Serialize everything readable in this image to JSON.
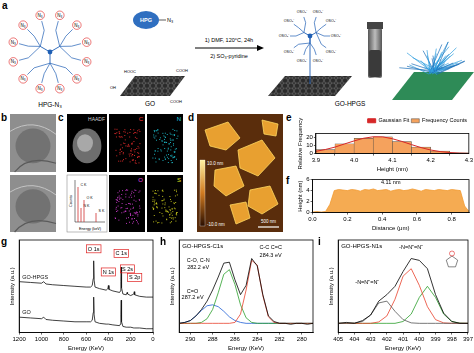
{
  "panels": {
    "a": {
      "letter": "a",
      "left_molecule": {
        "label": "HPG-N₃",
        "end_labels": [
          "N₃",
          "N₃",
          "N₃",
          "N₃",
          "N₃",
          "N₃",
          "N₃",
          "N₃",
          "N₃",
          "N₃",
          "N₃",
          "N₃"
        ]
      },
      "reagent": {
        "label": "HPG",
        "group": "N₃"
      },
      "sheet": {
        "label": "GO",
        "groups": [
          "HOOC",
          "COOH",
          "OH",
          "COOH"
        ]
      },
      "steps": [
        "1) DMF, 120°C, 24h",
        "2) SO₃-pyridine"
      ],
      "product": {
        "label": "GO-HPGS",
        "end_labels": [
          "OSO₃⁻",
          "OSO₃⁻",
          "OSO₃⁻",
          "OSO₃⁻",
          "OSO₃⁻",
          "OSO₃⁻",
          "OSO₃⁻",
          "OSO₃⁻",
          "OSO₃⁻",
          "OSO₃⁻"
        ]
      }
    },
    "b": {
      "letter": "b"
    },
    "c": {
      "letter": "c",
      "maps": [
        {
          "label": "HAADF",
          "color": "#d0d0d0"
        },
        {
          "label": "C",
          "color": "#ff3030"
        },
        {
          "label": "N",
          "color": "#20d0e0"
        },
        {
          "label": "O",
          "color": "#e040e0"
        },
        {
          "label": "S",
          "color": "#e0e020"
        }
      ],
      "eds": {
        "x_label": "Energy (keV)",
        "y_label": "Counts",
        "peaks": [
          "C K",
          "N K",
          "O K",
          "S K"
        ]
      }
    },
    "d": {
      "letter": "d",
      "colorbar_labels": [
        "10.0 nm",
        "-10.0 nm"
      ],
      "scale_bar": "500 nm"
    }
  },
  "chart_data": [
    {
      "panel": "e",
      "type": "histogram",
      "x_label": "Height (nm)",
      "y_label": "Relative Frequency",
      "bins": [
        3.9,
        3.95,
        4.0,
        4.05,
        4.1,
        4.15,
        4.2,
        4.25,
        4.3
      ],
      "counts": [
        5,
        12,
        19,
        21,
        15,
        8,
        3,
        1
      ],
      "name": "Frequency Counts",
      "color": "#f5a25d",
      "fit": {
        "name": "Gaussian Fit",
        "color": "#d62728",
        "x": [
          3.9,
          3.925,
          3.95,
          3.975,
          4.0,
          4.025,
          4.05,
          4.075,
          4.1,
          4.125,
          4.15,
          4.175,
          4.2,
          4.225,
          4.25,
          4.275,
          4.3
        ],
        "values": [
          2.8,
          5.1,
          8.1,
          12.0,
          15.8,
          19.1,
          20.9,
          20.8,
          18.5,
          15.1,
          11.2,
          7.5,
          4.5,
          2.5,
          1.3,
          0.57,
          0.2
        ]
      },
      "xlim": [
        3.9,
        4.3
      ],
      "xticks": [
        3.9,
        {
          "value": 4,
          "label": "4.0"
        },
        4.1,
        4.2,
        4.3
      ],
      "ylim": [
        0,
        25
      ],
      "yticks": [
        0,
        10,
        20
      ],
      "grid": false,
      "legend": "upper right"
    },
    {
      "panel": "f",
      "type": "area",
      "x_label": "Distance (μm)",
      "y_label": "Height (nm)",
      "color": "#f39c34",
      "x": [
        0,
        0.025,
        0.05,
        0.075,
        0.1,
        0.125,
        0.15,
        0.175,
        0.2,
        0.225,
        0.25,
        0.275,
        0.3,
        0.325,
        0.35,
        0.375,
        0.4,
        0.425,
        0.45,
        0.475,
        0.5,
        0.525,
        0.55,
        0.575,
        0.6,
        0.625,
        0.65,
        0.675,
        0.7,
        0.725,
        0.75,
        0.775,
        0.8,
        0.825,
        0.85,
        0.875,
        0.9
      ],
      "values": [
        0.1,
        0.2,
        0.1,
        0.2,
        1.5,
        4.0,
        4.2,
        4.1,
        4.0,
        4.2,
        4.1,
        3.9,
        4.2,
        4.1,
        4.3,
        4.0,
        4.1,
        4.2,
        3.9,
        4.1,
        4.2,
        4.0,
        4.1,
        4.3,
        4.1,
        3.9,
        4.2,
        4.1,
        4.0,
        4.2,
        4.1,
        4.0,
        4.2,
        4.1,
        4.0,
        1.2,
        0.2
      ],
      "annotations": [
        {
          "text": "4.11 nm",
          "x": 0.45,
          "y": 5.2
        }
      ],
      "xlim": [
        0,
        0.9
      ],
      "xticks": [
        {
          "value": 0,
          "label": "0.0"
        },
        0.2,
        0.4,
        0.6,
        0.8
      ],
      "ylim": [
        0,
        6
      ],
      "yticks": [
        0,
        2,
        4,
        6
      ],
      "grid": false
    },
    {
      "panel": "g",
      "type": "line",
      "x_label": "Energy (KeV)",
      "y_label": "Intensity (a.u.)",
      "x": [
        1200,
        1100,
        1000,
        980,
        960,
        900,
        800,
        700,
        600,
        560,
        545,
        536,
        532,
        528,
        520,
        480,
        420,
        405,
        400,
        395,
        360,
        300,
        292,
        288,
        285,
        282,
        270,
        240,
        232,
        228,
        200,
        172,
        168,
        164,
        120,
        60,
        0
      ],
      "series": [
        {
          "name": "GO-HPGS",
          "color": "#111111",
          "values": [
            6.6,
            6.5,
            6.4,
            6.6,
            6.3,
            6.2,
            6.1,
            6.0,
            5.9,
            5.9,
            6.1,
            7.0,
            9.3,
            6.8,
            5.9,
            5.7,
            5.5,
            5.7,
            6.1,
            5.6,
            5.4,
            5.2,
            5.4,
            6.6,
            8.5,
            5.8,
            5.0,
            4.9,
            5.2,
            5.0,
            4.8,
            5.0,
            5.3,
            4.9,
            4.7,
            4.6,
            4.6
          ]
        },
        {
          "name": "GO",
          "color": "#111111",
          "values": [
            2.0,
            1.9,
            1.8,
            2.0,
            1.7,
            1.6,
            1.5,
            1.4,
            1.4,
            1.4,
            1.6,
            2.6,
            4.6,
            2.3,
            1.4,
            1.2,
            1.1,
            1.1,
            1.1,
            1.1,
            1.0,
            0.9,
            1.1,
            2.3,
            4.2,
            1.4,
            0.8,
            0.7,
            0.7,
            0.7,
            0.7,
            0.6,
            0.6,
            0.6,
            0.6,
            0.5,
            0.5
          ]
        }
      ],
      "annotations": [
        {
          "text": "O 1s",
          "x": 532,
          "y": 10.6
        },
        {
          "text": "N 1s",
          "x": 400,
          "y": 7.6
        },
        {
          "text": "C 1s",
          "x": 285,
          "y": 10.0
        },
        {
          "text": "S 2s",
          "x": 228,
          "y": 8.0
        },
        {
          "text": "S 2p",
          "x": 165,
          "y": 6.9
        }
      ],
      "xlim": [
        1200,
        0
      ],
      "xticks": [
        1200,
        1000,
        800,
        600,
        400,
        200,
        0
      ],
      "ylim": [
        0,
        12
      ],
      "tick_labels": "x",
      "grid": false
    },
    {
      "panel": "h",
      "type": "line",
      "title": "GO-HPGS-C1s",
      "x_label": "Energy (KeV)",
      "y_label": "Intensity (a.u.)",
      "x": [
        291,
        290.5,
        290,
        289.5,
        289,
        288.5,
        288,
        287.5,
        287,
        286.5,
        286,
        285.5,
        285,
        284.5,
        284,
        283.5,
        283,
        282.5,
        282,
        281.5,
        281,
        280.5,
        280,
        279.5,
        279
      ],
      "series": [
        {
          "color": "#000000",
          "values": [
            1.0,
            1.1,
            1.3,
            1.8,
            2.5,
            3.4,
            4.6,
            6.0,
            7.5,
            7.6,
            5.7,
            4.1,
            5.1,
            8.0,
            7.2,
            4.1,
            1.8,
            1.2,
            1.0,
            1.0,
            0.9,
            1.0,
            1.0,
            0.9,
            1.0
          ]
        },
        {
          "color": "#e8412c",
          "values": [
            1,
            1,
            1,
            1,
            1,
            1,
            1,
            1,
            1,
            1,
            1.1,
            2.0,
            4.6,
            7.8,
            7.3,
            4.0,
            1.7,
            1.1,
            1,
            1,
            1,
            1,
            1,
            1,
            1
          ]
        },
        {
          "color": "#2ca02c",
          "values": [
            1,
            1,
            1,
            1,
            1.1,
            1.5,
            2.5,
            4.3,
            6.3,
            6.8,
            5.2,
            3.0,
            1.6,
            1.1,
            1,
            1,
            1,
            1,
            1,
            1,
            1,
            1,
            1,
            1,
            1
          ]
        },
        {
          "color": "#1f5fd6",
          "values": [
            1,
            1.1,
            1.3,
            1.8,
            2.4,
            2.9,
            3.0,
            2.8,
            2.3,
            1.7,
            1.3,
            1.1,
            1,
            1,
            1,
            1,
            1,
            1,
            1,
            1,
            1,
            1,
            1,
            1,
            1
          ]
        }
      ],
      "annotations": [
        {
          "text": "C-C C=C",
          "x": 282.8,
          "y": 9.0
        },
        {
          "text": "284.3 eV",
          "x": 282.8,
          "y": 8.2
        },
        {
          "text": "C-O, C-N",
          "x": 289.3,
          "y": 7.6
        },
        {
          "text": "282.2 eV",
          "x": 289.3,
          "y": 6.9
        },
        {
          "text": "C=O",
          "x": 289.8,
          "y": 4.3
        },
        {
          "text": "287.2 eV",
          "x": 289.8,
          "y": 3.6
        }
      ],
      "xlim": [
        291,
        279
      ],
      "xticks": [
        290,
        288,
        286,
        284,
        282,
        280
      ],
      "ylim": [
        0,
        10
      ],
      "tick_labels": "x",
      "grid": false
    },
    {
      "panel": "i",
      "type": "line",
      "title": "GO-HPGS-N1s",
      "x_label": "Energy (KeV)",
      "y_label": "Intensity (a.u.)",
      "x": [
        405,
        404.5,
        404,
        403.5,
        403,
        402.5,
        402,
        401.5,
        401,
        400.5,
        400,
        399.5,
        399,
        398.5,
        398,
        397.5,
        397
      ],
      "series": [
        {
          "color": "#000000",
          "values": [
            1.0,
            1.1,
            1.0,
            1.3,
            1.9,
            3.4,
            4.1,
            5.0,
            6.6,
            8.0,
            7.8,
            6.9,
            4.1,
            2.1,
            1.2,
            1.0,
            1.0
          ]
        },
        {
          "color": "#555555",
          "values": [
            1,
            1,
            1.03,
            1.2,
            1.9,
            3.2,
            3.4,
            2.3,
            1.4,
            1.05,
            1,
            1,
            1,
            1,
            1,
            1,
            1
          ]
        },
        {
          "color": "#e8412c",
          "values": [
            1,
            1,
            1,
            1,
            1,
            1.15,
            1.8,
            3.6,
            6.1,
            6.9,
            5.1,
            2.8,
            1.4,
            1.05,
            1,
            1,
            1
          ]
        },
        {
          "color": "#2ca02c",
          "values": [
            1,
            1,
            1,
            1,
            1,
            1,
            1,
            1,
            1.2,
            2.0,
            3.8,
            5.0,
            3.8,
            2.0,
            1.2,
            1.02,
            1
          ]
        }
      ],
      "annotations": [
        {
          "text": "-N=N⁺=N⁻",
          "x": 403.2,
          "y": 5.2
        },
        {
          "text": "-N=N⁺=N⁻",
          "x": 400.5,
          "y": 9.0
        }
      ],
      "xlim": [
        405,
        397
      ],
      "xticks": [
        405,
        404,
        403,
        402,
        401,
        400,
        399,
        398,
        397
      ],
      "ylim": [
        0,
        10
      ],
      "tick_labels": "x",
      "grid": false
    }
  ]
}
